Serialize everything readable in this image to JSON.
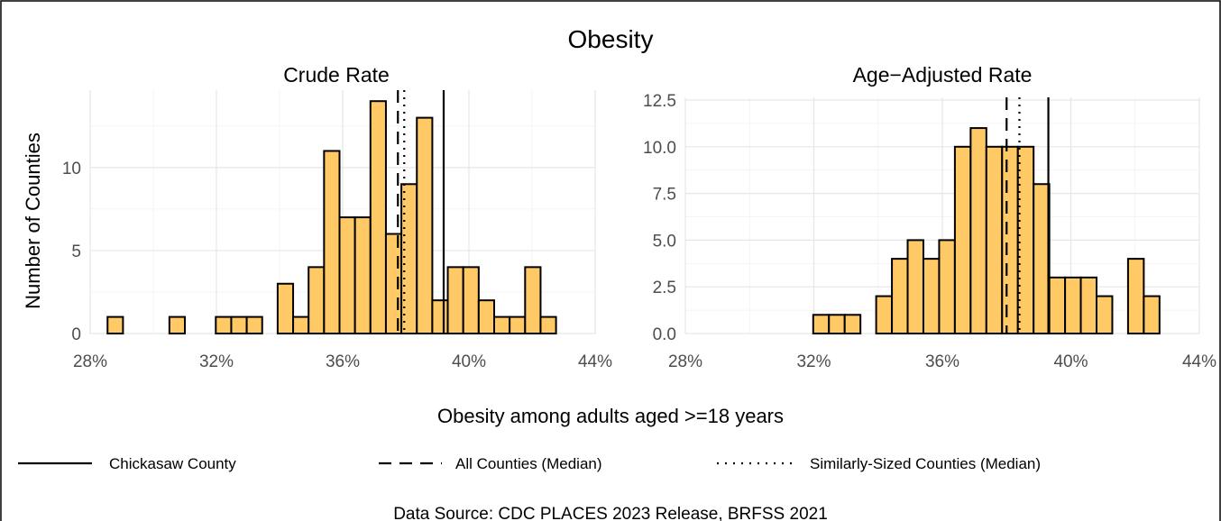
{
  "chart_data": {
    "type": "bar",
    "title": "Obesity",
    "xlabel": "Obesity among adults aged >=18 years",
    "ylabel": "Number of Counties",
    "source": "Data Source: CDC PLACES 2023 Release, BRFSS 2021",
    "xlim": [
      28,
      44
    ],
    "x_ticks": [
      "28%",
      "32%",
      "36%",
      "40%",
      "44%"
    ],
    "x_tick_values": [
      28,
      32,
      36,
      40,
      44
    ],
    "bar_fill": "#ffc966",
    "bin_start": 28.55,
    "bin_width": 0.49,
    "legend": [
      {
        "label": "Chickasaw County",
        "style": "solid"
      },
      {
        "label": "All Counties (Median)",
        "style": "dashed"
      },
      {
        "label": "Similarly-Sized Counties (Median)",
        "style": "dotted"
      }
    ],
    "panels": [
      {
        "title": "Crude Rate",
        "ylim": [
          0,
          14.5
        ],
        "y_ticks": [
          "0",
          "5",
          "10"
        ],
        "y_tick_values": [
          0,
          5,
          10
        ],
        "counts": [
          1,
          0,
          0,
          0,
          1,
          0,
          0,
          1,
          1,
          1,
          0,
          3,
          1,
          4,
          11,
          7,
          7,
          14,
          6,
          9,
          13,
          2,
          4,
          4,
          2,
          1,
          1,
          4,
          1
        ],
        "reference_lines": {
          "chickasaw_county": 39.2,
          "all_counties_median": 37.75,
          "similar_counties_median": 37.95
        }
      },
      {
        "title": "Age−Adjusted Rate",
        "ylim": [
          0,
          12.5
        ],
        "y_ticks": [
          "0.0",
          "2.5",
          "5.0",
          "7.5",
          "10.0",
          "12.5"
        ],
        "y_tick_values": [
          0,
          2.5,
          5,
          7.5,
          10,
          12.5
        ],
        "counts": [
          0,
          0,
          0,
          0,
          0,
          0,
          0,
          1,
          1,
          1,
          0,
          2,
          4,
          5,
          4,
          5,
          10,
          11,
          10,
          10,
          10,
          8,
          3,
          3,
          3,
          2,
          0,
          4,
          2
        ],
        "reference_lines": {
          "chickasaw_county": 39.3,
          "all_counties_median": 38.0,
          "similar_counties_median": 38.4
        }
      }
    ]
  }
}
